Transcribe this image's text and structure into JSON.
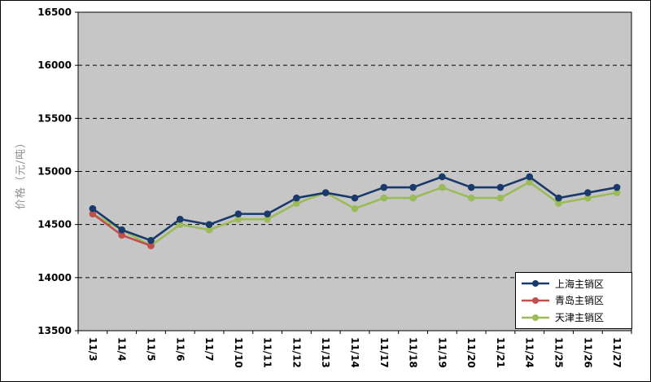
{
  "chart_data": {
    "type": "line",
    "title": "",
    "xlabel": "",
    "ylabel": "价格（元/吨）",
    "ylim": [
      13500,
      16500
    ],
    "yticks": [
      13500,
      14000,
      14500,
      15000,
      15500,
      16000,
      16500
    ],
    "grid": "horizontal-dashed",
    "plot_bg": "#c6c6c6",
    "legend_position": "bottom-right",
    "marker": "circle",
    "categories": [
      "11/3",
      "11/4",
      "11/5",
      "11/6",
      "11/7",
      "11/10",
      "11/11",
      "11/12",
      "11/13",
      "11/14",
      "11/17",
      "11/18",
      "11/19",
      "11/20",
      "11/21",
      "11/24",
      "11/25",
      "11/26",
      "11/27"
    ],
    "series": [
      {
        "name": "上海主销区",
        "color": "#1a3a6b",
        "values": [
          14650,
          14450,
          14350,
          14550,
          14500,
          14600,
          14600,
          14750,
          14800,
          14750,
          14850,
          14850,
          14950,
          14850,
          14850,
          14950,
          14750,
          14800,
          14850
        ]
      },
      {
        "name": "青岛主销区",
        "color": "#c0504d",
        "values": [
          14600,
          14400,
          14300,
          null,
          null,
          null,
          null,
          null,
          null,
          null,
          null,
          null,
          null,
          null,
          null,
          null,
          null,
          null,
          null
        ]
      },
      {
        "name": "天津主销区",
        "color": "#9bbb59",
        "values": [
          14600,
          14450,
          14300,
          14500,
          14450,
          14550,
          14550,
          14700,
          14800,
          14650,
          14750,
          14750,
          14850,
          14750,
          14750,
          14900,
          14700,
          14750,
          14800
        ]
      }
    ]
  }
}
